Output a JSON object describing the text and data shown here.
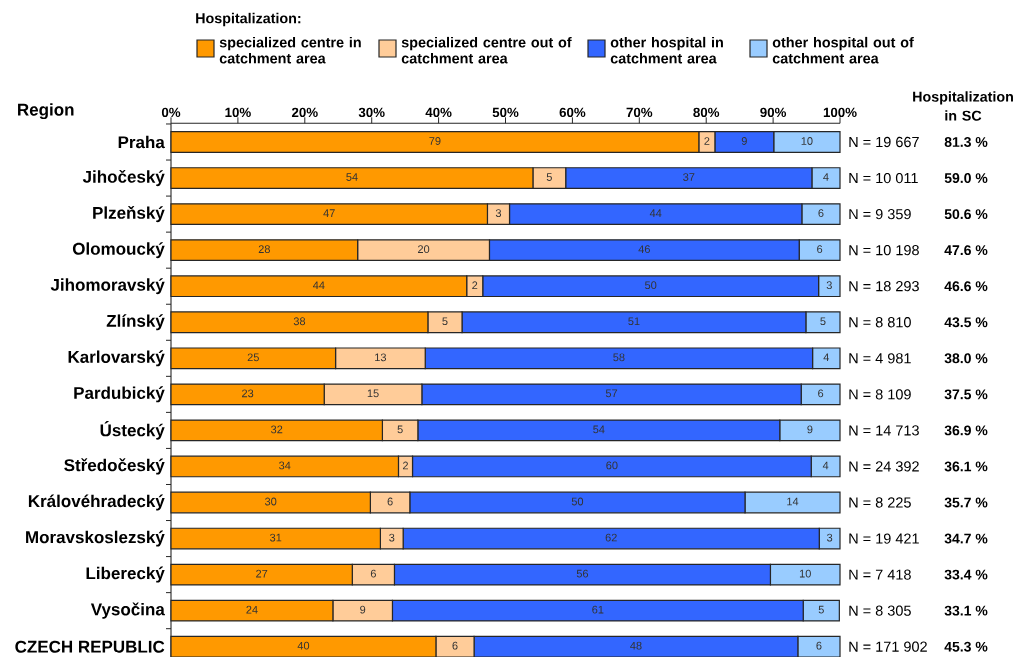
{
  "chart_data": {
    "type": "bar",
    "orientation": "horizontal",
    "stacked": true,
    "ylabel": "Region",
    "legend_title": "Hospitalization:",
    "legend": "top",
    "categories": [
      "Praha",
      "Jihočeský",
      "Plzeňský",
      "Olomoucký",
      "Jihomoravský",
      "Zlínský",
      "Karlovarský",
      "Pardubický",
      "Ústecký",
      "Středočeský",
      "Královéhradecký",
      "Moravskoslezský",
      "Liberecký",
      "Vysočina",
      "CZECH REPUBLIC"
    ],
    "series": [
      {
        "name": "specialized centre in catchment area",
        "color": "#ff9900",
        "values": [
          78.9,
          54.1,
          47.3,
          27.9,
          44.2,
          38.4,
          24.6,
          22.9,
          31.6,
          34.0,
          29.8,
          31.3,
          27.1,
          24.2,
          39.6
        ],
        "value_labels": [
          "79",
          "54",
          "47",
          "28",
          "44",
          "38",
          "25",
          "23",
          "32",
          "34",
          "30",
          "31",
          "27",
          "24",
          "40"
        ]
      },
      {
        "name": "specialized centre out of catchment area",
        "color": "#ffcc99",
        "values": [
          2.4,
          4.9,
          3.3,
          19.7,
          2.4,
          5.1,
          13.4,
          14.6,
          5.3,
          2.1,
          5.9,
          3.4,
          6.3,
          8.9,
          5.7
        ],
        "value_labels": [
          "2",
          "5",
          "3",
          "20",
          "2",
          "5",
          "13",
          "15",
          "5",
          "2",
          "6",
          "3",
          "6",
          "9",
          "6"
        ]
      },
      {
        "name": "other hospital in catchment area",
        "color": "#3366ff",
        "values": [
          8.8,
          36.8,
          43.7,
          46.3,
          50.2,
          51.4,
          57.9,
          56.7,
          54.1,
          59.6,
          50.1,
          62.2,
          56.2,
          61.4,
          48.4
        ],
        "value_labels": [
          "9",
          "37",
          "44",
          "46",
          "50",
          "51",
          "58",
          "57",
          "54",
          "60",
          "50",
          "62",
          "56",
          "61",
          "48"
        ]
      },
      {
        "name": "other hospital out of catchment area",
        "color": "#99ccff",
        "values": [
          9.9,
          4.2,
          5.7,
          6.1,
          3.2,
          5.1,
          4.1,
          5.8,
          9.0,
          4.3,
          14.2,
          3.1,
          10.4,
          5.4,
          6.3
        ],
        "value_labels": [
          "10",
          "4",
          "6",
          "6",
          "3",
          "5",
          "4",
          "6",
          "9",
          "4",
          "14",
          "3",
          "10",
          "5",
          "6"
        ]
      }
    ],
    "xlim": [
      0,
      100
    ],
    "xticks": [
      {
        "value": 0,
        "label": "0%"
      },
      {
        "value": 10,
        "label": "10%"
      },
      {
        "value": 20,
        "label": "20%"
      },
      {
        "value": 30,
        "label": "30%"
      },
      {
        "value": 40,
        "label": "40%"
      },
      {
        "value": 50,
        "label": "50%"
      },
      {
        "value": 60,
        "label": "60%"
      },
      {
        "value": 70,
        "label": "70%"
      },
      {
        "value": 80,
        "label": "80%"
      },
      {
        "value": 90,
        "label": "90%"
      },
      {
        "value": 100,
        "label": "100%"
      }
    ],
    "annotations": [
      "Hospitalization in SC",
      "N = 19 667",
      "81.3 %",
      "N = 10 011",
      "59.0 %",
      "N = 9 359",
      "50.6 %",
      "N = 10 198",
      "47.6 %",
      "N = 18 293",
      "46.6 %",
      "N = 8 810",
      "43.5 %",
      "N = 4 981",
      "38.0 %",
      "N = 8 109",
      "37.5 %",
      "N = 14 713",
      "36.9 %",
      "N = 24 392",
      "36.1 %",
      "N = 8 225",
      "35.7 %",
      "N = 19 421",
      "34.7 %",
      "N = 7 418",
      "33.4 %",
      "N = 8 305",
      "33.1 %",
      "N = 171 902",
      "45.3 %"
    ]
  }
}
